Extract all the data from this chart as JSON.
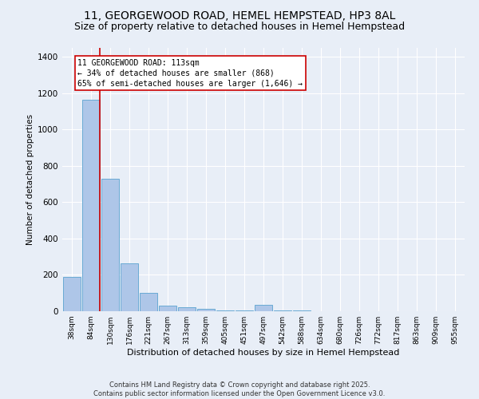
{
  "title": "11, GEORGEWOOD ROAD, HEMEL HEMPSTEAD, HP3 8AL",
  "subtitle": "Size of property relative to detached houses in Hemel Hempstead",
  "xlabel": "Distribution of detached houses by size in Hemel Hempstead",
  "ylabel": "Number of detached properties",
  "footer_line1": "Contains HM Land Registry data © Crown copyright and database right 2025.",
  "footer_line2": "Contains public sector information licensed under the Open Government Licence v3.0.",
  "categories": [
    "38sqm",
    "84sqm",
    "130sqm",
    "176sqm",
    "221sqm",
    "267sqm",
    "313sqm",
    "359sqm",
    "405sqm",
    "451sqm",
    "497sqm",
    "542sqm",
    "588sqm",
    "634sqm",
    "680sqm",
    "726sqm",
    "772sqm",
    "817sqm",
    "863sqm",
    "909sqm",
    "955sqm"
  ],
  "values": [
    190,
    1165,
    730,
    265,
    100,
    30,
    22,
    12,
    5,
    5,
    35,
    5,
    3,
    2,
    2,
    2,
    2,
    2,
    2,
    2,
    2
  ],
  "bar_color": "#aec6e8",
  "bar_edge_color": "#6aaad4",
  "vline_color": "#cc0000",
  "annotation_text": "11 GEORGEWOOD ROAD: 113sqm\n← 34% of detached houses are smaller (868)\n65% of semi-detached houses are larger (1,646) →",
  "annotation_box_color": "#ffffff",
  "annotation_box_edge_color": "#cc0000",
  "ylim": [
    0,
    1450
  ],
  "yticks": [
    0,
    200,
    400,
    600,
    800,
    1000,
    1200,
    1400
  ],
  "bg_color": "#e8eef7",
  "plot_bg_color": "#e8eef7",
  "grid_color": "#ffffff",
  "title_fontsize": 10,
  "subtitle_fontsize": 9
}
